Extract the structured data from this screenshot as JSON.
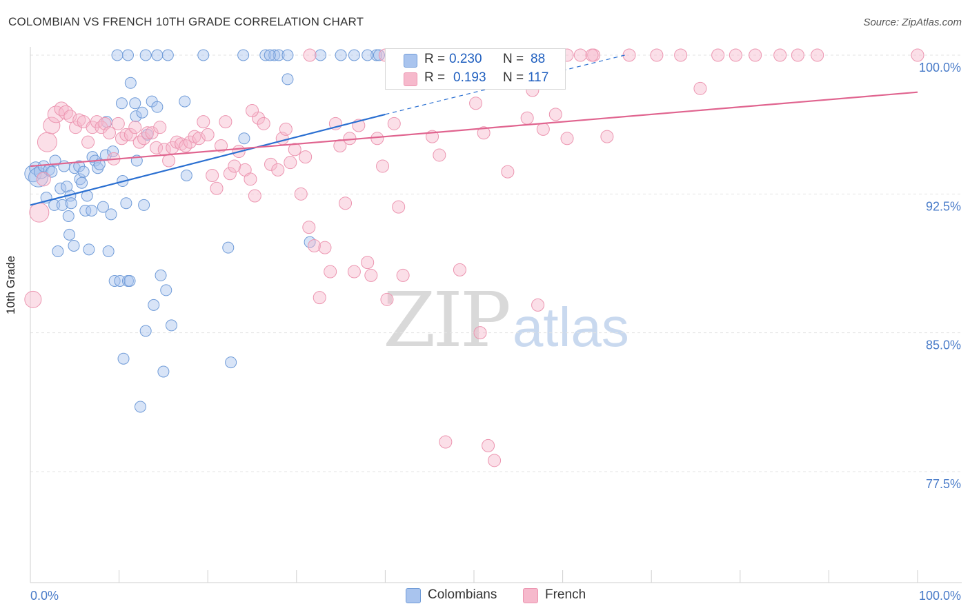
{
  "header": {
    "title": "COLOMBIAN VS FRENCH 10TH GRADE CORRELATION CHART",
    "source": "Source: ZipAtlas.com"
  },
  "watermark": {
    "zip": "ZIP",
    "atlas": "atlas"
  },
  "legend": {
    "r_label": "R =",
    "n_label": "N =",
    "colombians": {
      "r": "0.230",
      "n": "88"
    },
    "french": {
      "r": "0.193",
      "n": "117"
    }
  },
  "bottom_legend": {
    "colombians": "Colombians",
    "french": "French"
  },
  "colors": {
    "colombians_fill": "#a9c4ee",
    "colombians_stroke": "#6f9bd8",
    "colombians_line": "#2a6fd1",
    "french_fill": "#f6b9cc",
    "french_stroke": "#ec95b0",
    "french_line": "#e0648f",
    "tick_label": "#4a7cc9",
    "grid": "#e3e3e3"
  },
  "chart_data": {
    "type": "scatter",
    "title": "COLOMBIAN VS FRENCH 10TH GRADE CORRELATION CHART",
    "xlabel": "",
    "ylabel": "10th Grade",
    "xlim": [
      0,
      100
    ],
    "ylim": [
      71.5,
      100.6
    ],
    "x_tick_labels": [
      "0.0%",
      "100.0%"
    ],
    "y_ticks": [
      77.5,
      85.0,
      92.5,
      100.0
    ],
    "y_tick_labels": [
      "77.5%",
      "85.0%",
      "92.5%",
      "100.0%"
    ],
    "grid": true,
    "legend_position": "top-center",
    "series": [
      {
        "name": "Colombians",
        "r": 0.23,
        "n": 88,
        "trend": {
          "x0": 0.0,
          "y0": 91.9,
          "x1": 40.0,
          "y1": 96.8,
          "dash_to_x": 67.0,
          "dash_to_y": 100.0
        },
        "points": [
          [
            0.3,
            93.6,
            12
          ],
          [
            0.6,
            93.9,
            9
          ],
          [
            0.9,
            93.4,
            14
          ],
          [
            1.2,
            93.7,
            10
          ],
          [
            1.5,
            94.0,
            8
          ],
          [
            1.8,
            92.3,
            8
          ],
          [
            2.1,
            93.8,
            8
          ],
          [
            2.4,
            93.7,
            8
          ],
          [
            2.7,
            91.9,
            8
          ],
          [
            2.8,
            94.3,
            8
          ],
          [
            3.1,
            89.4,
            8
          ],
          [
            3.4,
            92.8,
            8
          ],
          [
            3.6,
            91.9,
            8
          ],
          [
            3.8,
            94.0,
            8
          ],
          [
            4.1,
            92.9,
            8
          ],
          [
            4.3,
            91.3,
            8
          ],
          [
            4.4,
            90.3,
            8
          ],
          [
            4.5,
            92.4,
            8
          ],
          [
            4.6,
            92.0,
            8
          ],
          [
            4.9,
            89.7,
            8
          ],
          [
            5.0,
            93.9,
            8
          ],
          [
            5.5,
            94.0,
            8
          ],
          [
            5.6,
            93.3,
            8
          ],
          [
            5.8,
            93.1,
            8
          ],
          [
            6.0,
            93.7,
            8
          ],
          [
            6.2,
            91.6,
            8
          ],
          [
            6.4,
            92.4,
            8
          ],
          [
            6.6,
            89.5,
            8
          ],
          [
            6.9,
            91.6,
            8
          ],
          [
            7.0,
            94.5,
            8
          ],
          [
            7.3,
            94.3,
            8
          ],
          [
            7.6,
            93.9,
            8
          ],
          [
            7.8,
            94.1,
            8
          ],
          [
            8.2,
            91.8,
            8
          ],
          [
            8.5,
            94.6,
            8
          ],
          [
            8.6,
            96.4,
            8
          ],
          [
            8.8,
            89.4,
            8
          ],
          [
            9.1,
            91.4,
            8
          ],
          [
            9.3,
            94.8,
            8
          ],
          [
            9.5,
            87.8,
            8
          ],
          [
            10.1,
            87.8,
            8
          ],
          [
            10.3,
            97.4,
            8
          ],
          [
            10.4,
            93.2,
            8
          ],
          [
            10.5,
            83.6,
            8
          ],
          [
            10.8,
            92.0,
            8
          ],
          [
            11.0,
            87.8,
            8
          ],
          [
            11.2,
            87.8,
            8
          ],
          [
            11.3,
            98.5,
            8
          ],
          [
            11.8,
            97.4,
            8
          ],
          [
            11.9,
            96.7,
            8
          ],
          [
            12.0,
            94.3,
            8
          ],
          [
            12.4,
            81.0,
            8
          ],
          [
            12.6,
            96.9,
            8
          ],
          [
            12.8,
            91.9,
            8
          ],
          [
            13.0,
            85.1,
            8
          ],
          [
            13.2,
            95.7,
            8
          ],
          [
            13.7,
            97.5,
            8
          ],
          [
            13.9,
            86.5,
            8
          ],
          [
            14.3,
            97.2,
            8
          ],
          [
            14.7,
            88.1,
            8
          ],
          [
            15.0,
            82.9,
            8
          ],
          [
            15.3,
            87.3,
            8
          ],
          [
            15.9,
            85.4,
            8
          ],
          [
            17.4,
            97.5,
            8
          ],
          [
            17.6,
            93.5,
            8
          ],
          [
            22.3,
            89.6,
            8
          ],
          [
            22.6,
            83.4,
            8
          ],
          [
            24.1,
            95.5,
            8
          ],
          [
            29.0,
            98.7,
            8
          ],
          [
            31.5,
            89.9,
            8
          ],
          [
            11.0,
            100.0,
            8
          ],
          [
            13.0,
            100.0,
            8
          ],
          [
            14.3,
            100.0,
            8
          ],
          [
            15.5,
            100.0,
            8
          ],
          [
            19.5,
            100.0,
            8
          ],
          [
            24.0,
            100.0,
            8
          ],
          [
            26.5,
            100.0,
            8
          ],
          [
            27.5,
            100.0,
            8
          ],
          [
            28.0,
            100.0,
            8
          ],
          [
            29.0,
            100.0,
            8
          ],
          [
            32.7,
            100.0,
            8
          ],
          [
            35.0,
            100.0,
            8
          ],
          [
            39.0,
            100.0,
            8
          ],
          [
            39.3,
            100.0,
            8
          ],
          [
            27.0,
            100.0,
            8
          ],
          [
            36.5,
            100.0,
            8
          ],
          [
            9.8,
            100.0,
            8
          ],
          [
            38.0,
            100.0,
            8
          ]
        ]
      },
      {
        "name": "French",
        "r": 0.193,
        "n": 117,
        "trend": {
          "x0": 0.0,
          "y0": 94.0,
          "x1": 100.0,
          "y1": 98.0
        },
        "points": [
          [
            0.3,
            86.8,
            12
          ],
          [
            1.0,
            91.5,
            14
          ],
          [
            1.5,
            93.3,
            10
          ],
          [
            1.9,
            95.3,
            14
          ],
          [
            2.4,
            96.2,
            12
          ],
          [
            2.9,
            96.8,
            12
          ],
          [
            3.5,
            97.1,
            10
          ],
          [
            4.0,
            96.9,
            10
          ],
          [
            4.5,
            96.7,
            9
          ],
          [
            5.1,
            96.1,
            9
          ],
          [
            5.5,
            96.5,
            9
          ],
          [
            6.0,
            96.4,
            9
          ],
          [
            6.5,
            95.3,
            9
          ],
          [
            7.0,
            96.1,
            9
          ],
          [
            7.5,
            96.4,
            9
          ],
          [
            8.0,
            96.1,
            9
          ],
          [
            8.4,
            96.3,
            9
          ],
          [
            8.9,
            95.8,
            9
          ],
          [
            9.4,
            94.4,
            9
          ],
          [
            9.9,
            96.3,
            9
          ],
          [
            10.3,
            95.5,
            9
          ],
          [
            10.8,
            95.7,
            9
          ],
          [
            11.3,
            95.7,
            9
          ],
          [
            11.8,
            96.1,
            9
          ],
          [
            12.3,
            95.3,
            9
          ],
          [
            12.8,
            95.5,
            9
          ],
          [
            13.2,
            95.8,
            9
          ],
          [
            13.7,
            95.8,
            9
          ],
          [
            14.2,
            95.0,
            9
          ],
          [
            14.6,
            96.1,
            9
          ],
          [
            15.1,
            94.9,
            9
          ],
          [
            15.6,
            94.3,
            9
          ],
          [
            16.0,
            95.0,
            9
          ],
          [
            16.5,
            95.3,
            9
          ],
          [
            17.0,
            95.2,
            9
          ],
          [
            17.5,
            95.1,
            9
          ],
          [
            18.0,
            95.3,
            9
          ],
          [
            18.5,
            95.6,
            9
          ],
          [
            19.0,
            95.5,
            9
          ],
          [
            19.5,
            96.4,
            9
          ],
          [
            20.0,
            95.7,
            9
          ],
          [
            20.5,
            93.5,
            9
          ],
          [
            21.0,
            92.8,
            9
          ],
          [
            21.5,
            95.1,
            9
          ],
          [
            22.0,
            96.4,
            9
          ],
          [
            22.5,
            93.6,
            9
          ],
          [
            23.0,
            94.0,
            9
          ],
          [
            23.5,
            94.8,
            9
          ],
          [
            24.2,
            93.8,
            9
          ],
          [
            24.8,
            93.3,
            9
          ],
          [
            25.3,
            92.4,
            9
          ],
          [
            25.7,
            96.6,
            9
          ],
          [
            26.3,
            96.3,
            9
          ],
          [
            27.1,
            94.1,
            9
          ],
          [
            27.9,
            93.8,
            9
          ],
          [
            28.4,
            95.5,
            9
          ],
          [
            28.8,
            96.0,
            9
          ],
          [
            29.3,
            94.2,
            9
          ],
          [
            29.8,
            94.9,
            9
          ],
          [
            30.5,
            92.5,
            9
          ],
          [
            31.0,
            94.5,
            9
          ],
          [
            31.4,
            90.7,
            9
          ],
          [
            32.0,
            89.7,
            9
          ],
          [
            32.6,
            86.9,
            9
          ],
          [
            33.2,
            89.6,
            9
          ],
          [
            33.8,
            88.3,
            9
          ],
          [
            34.4,
            96.3,
            9
          ],
          [
            34.9,
            95.1,
            9
          ],
          [
            35.5,
            92.0,
            9
          ],
          [
            36.0,
            95.5,
            9
          ],
          [
            36.5,
            88.3,
            9
          ],
          [
            37.0,
            96.2,
            9
          ],
          [
            38.0,
            88.8,
            9
          ],
          [
            38.4,
            88.1,
            9
          ],
          [
            39.1,
            95.5,
            9
          ],
          [
            39.7,
            94.0,
            9
          ],
          [
            40.2,
            86.8,
            9
          ],
          [
            41.0,
            96.3,
            9
          ],
          [
            41.5,
            91.8,
            9
          ],
          [
            42.0,
            88.1,
            9
          ],
          [
            45.3,
            95.6,
            9
          ],
          [
            46.1,
            94.6,
            9
          ],
          [
            46.8,
            79.1,
            9
          ],
          [
            48.4,
            88.4,
            9
          ],
          [
            50.2,
            97.4,
            9
          ],
          [
            50.7,
            85.0,
            9
          ],
          [
            51.6,
            78.9,
            9
          ],
          [
            51.1,
            95.8,
            9
          ],
          [
            52.3,
            78.1,
            9
          ],
          [
            53.8,
            93.7,
            9
          ],
          [
            56.0,
            96.6,
            9
          ],
          [
            56.6,
            98.1,
            9
          ],
          [
            57.2,
            86.5,
            9
          ],
          [
            57.8,
            96.0,
            9
          ],
          [
            59.2,
            96.8,
            9
          ],
          [
            60.5,
            95.5,
            9
          ],
          [
            62.0,
            100.0,
            9
          ],
          [
            63.5,
            100.0,
            9
          ],
          [
            65.0,
            95.6,
            9
          ],
          [
            67.5,
            100.0,
            9
          ],
          [
            70.6,
            100.0,
            9
          ],
          [
            73.3,
            100.0,
            9
          ],
          [
            75.5,
            98.2,
            9
          ],
          [
            77.5,
            100.0,
            9
          ],
          [
            79.5,
            100.0,
            9
          ],
          [
            81.7,
            100.0,
            9
          ],
          [
            84.5,
            100.0,
            9
          ],
          [
            86.5,
            100.0,
            9
          ],
          [
            88.7,
            100.0,
            9
          ],
          [
            31.5,
            100.0,
            9
          ],
          [
            40.0,
            100.0,
            9
          ],
          [
            47.5,
            100.0,
            9
          ],
          [
            56.3,
            100.0,
            9
          ],
          [
            60.5,
            100.0,
            9
          ],
          [
            63.3,
            100.0,
            9
          ],
          [
            100.0,
            100.0,
            9
          ],
          [
            25.0,
            97.0,
            9
          ]
        ]
      }
    ]
  }
}
